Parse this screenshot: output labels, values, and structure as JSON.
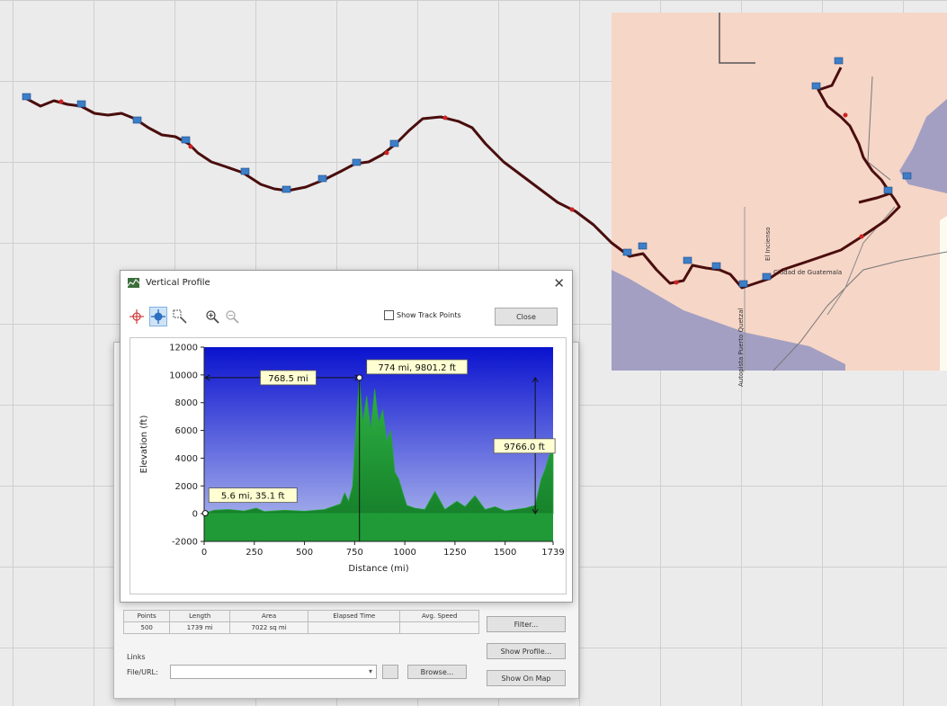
{
  "window": {
    "title": "Vertical Profile",
    "close_label": "Close",
    "show_track_points_label": "Show Track Points"
  },
  "tools": [
    {
      "name": "crosshair-icon"
    },
    {
      "name": "move-icon"
    },
    {
      "name": "zoom-select-icon"
    },
    {
      "name": "zoom-in-icon"
    },
    {
      "name": "zoom-out-icon"
    }
  ],
  "map": {
    "town_label": "Ciudad de Guatemala",
    "road_label_1": "Autopista Puerto Quetzal",
    "road_label_2": "El Incienso",
    "colors": {
      "track": "#4a0d0d",
      "land": "#f6d6c7",
      "water": "#a39fc2"
    }
  },
  "annotations": {
    "span_label": "768.5 mi",
    "peak_label": "774 mi, 9801.2 ft",
    "height_label": "9766.0 ft",
    "start_label": "5.6 mi, 35.1 ft"
  },
  "chart_data": {
    "type": "area",
    "xlabel": "Distance  (mi)",
    "ylabel": "Elevation (ft)",
    "xlim": [
      0,
      1739
    ],
    "ylim": [
      -2000,
      12000
    ],
    "x_ticks": [
      0,
      250,
      500,
      750,
      1000,
      1250,
      1500,
      1739
    ],
    "y_ticks": [
      -2000,
      0,
      2000,
      4000,
      6000,
      8000,
      10000,
      12000
    ],
    "x": [
      0,
      50,
      120,
      200,
      260,
      300,
      400,
      500,
      600,
      680,
      700,
      720,
      740,
      760,
      774,
      790,
      810,
      830,
      850,
      870,
      890,
      910,
      930,
      950,
      970,
      990,
      1010,
      1050,
      1100,
      1150,
      1200,
      1260,
      1300,
      1350,
      1400,
      1450,
      1500,
      1550,
      1600,
      1650,
      1680,
      1700,
      1720,
      1739
    ],
    "y": [
      35,
      250,
      300,
      200,
      400,
      150,
      250,
      180,
      300,
      700,
      1500,
      900,
      2000,
      7000,
      9801,
      6500,
      8500,
      6000,
      9000,
      6500,
      7500,
      5200,
      6000,
      3000,
      2500,
      1500,
      600,
      400,
      300,
      1600,
      300,
      900,
      500,
      1300,
      300,
      500,
      200,
      300,
      400,
      600,
      2500,
      3200,
      4200,
      4600
    ],
    "colors": {
      "area": "#24a33a",
      "sky_top": "#0a12cf",
      "sky_bottom": "#b7c1ee"
    }
  },
  "properties": {
    "columns": [
      "Points",
      "Length",
      "Area",
      "Elapsed Time",
      "Avg. Speed"
    ],
    "values": [
      "500",
      "1739 mi",
      "7022 sq mi",
      "",
      ""
    ],
    "links_label": "Links",
    "file_url_label": "File/URL:",
    "file_url_value": "",
    "browse_label": "Browse...",
    "filter_label": "Filter...",
    "show_profile_label": "Show Profile...",
    "show_on_map_label": "Show On Map"
  }
}
